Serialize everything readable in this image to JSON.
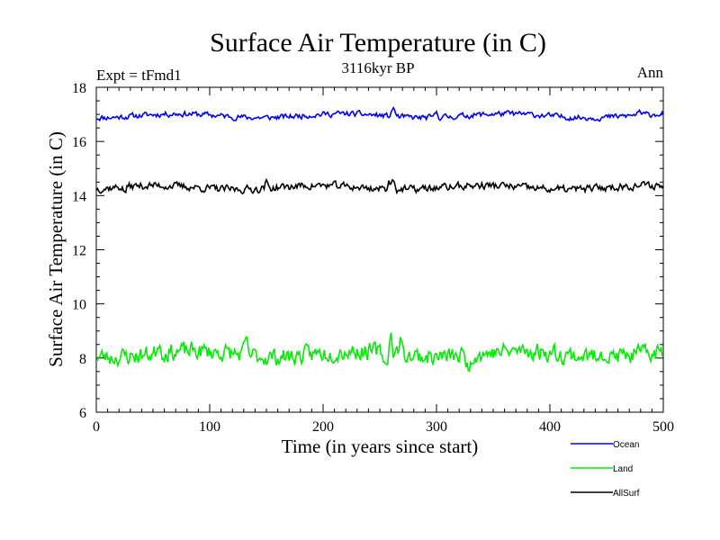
{
  "chart_data": {
    "type": "line",
    "title": "Surface Air Temperature (in C)",
    "subtitle": "3116kyr BP",
    "left_label": "Expt = tFmd1",
    "right_label": "Ann",
    "xlabel": "Time (in years since start)",
    "ylabel": "Surface Air Temperature (in C)",
    "xlim": [
      0,
      500
    ],
    "ylim": [
      6,
      18
    ],
    "xticks": [
      0,
      100,
      200,
      300,
      400,
      500
    ],
    "yticks": [
      6,
      8,
      10,
      12,
      14,
      16,
      18
    ],
    "grid": false,
    "legend_position": "bottom-right",
    "series": [
      {
        "name": "Ocean",
        "color": "#0000ff",
        "mean": 16.95,
        "amplitude": 0.12,
        "noise": 0.09,
        "seed": 11,
        "spikes": [
          [
            262,
            0.35
          ],
          [
            300,
            0.2
          ],
          [
            478,
            0.15
          ]
        ]
      },
      {
        "name": "Land",
        "color": "#00ee00",
        "mean": 8.15,
        "amplitude": 0.18,
        "noise": 0.28,
        "seed": 23,
        "spikes": [
          [
            55,
            0.5
          ],
          [
            132,
            0.5
          ],
          [
            260,
            0.6
          ],
          [
            268,
            0.55
          ],
          [
            328,
            -0.5
          ],
          [
            445,
            0.45
          ],
          [
            255,
            -0.45
          ]
        ]
      },
      {
        "name": "AllSurf",
        "color": "#000000",
        "mean": 14.3,
        "amplitude": 0.12,
        "noise": 0.12,
        "seed": 37,
        "spikes": [
          [
            262,
            0.4
          ],
          [
            258,
            0.3
          ],
          [
            150,
            0.2
          ],
          [
            25,
            -0.2
          ]
        ]
      }
    ]
  }
}
